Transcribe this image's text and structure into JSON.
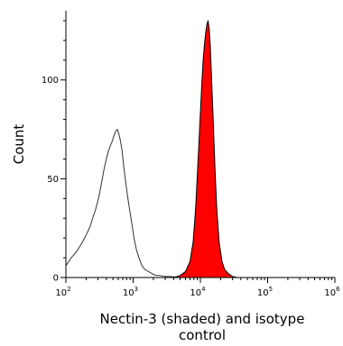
{
  "chart_data": {
    "type": "area",
    "xlabel_lines": [
      "Nectin-3 (shaded) and isotype",
      "control"
    ],
    "ylabel": "Count",
    "x_scale": "log",
    "xlim": [
      100,
      1000000
    ],
    "ylim": [
      0,
      135
    ],
    "x_ticks": [
      {
        "value": 100,
        "base": "10",
        "exp": "2"
      },
      {
        "value": 1000,
        "base": "10",
        "exp": "3"
      },
      {
        "value": 10000,
        "base": "10",
        "exp": "4"
      },
      {
        "value": 100000,
        "base": "10",
        "exp": "5"
      },
      {
        "value": 1000000,
        "base": "10",
        "exp": "6"
      }
    ],
    "y_ticks": [
      {
        "value": 0,
        "label": "0"
      },
      {
        "value": 50,
        "label": "50"
      },
      {
        "value": 100,
        "label": "100"
      }
    ],
    "series": [
      {
        "role": "isotype-control",
        "fill": "none",
        "stroke": "#333333",
        "x": [
          100,
          110,
          120,
          135,
          150,
          170,
          190,
          210,
          230,
          250,
          280,
          310,
          340,
          370,
          400,
          430,
          460,
          490,
          520,
          550,
          580,
          610,
          640,
          680,
          720,
          770,
          820,
          880,
          950,
          1030,
          1120,
          1220,
          1350,
          1500,
          1700,
          1900,
          2200,
          2500,
          3000,
          3600,
          4200,
          5000
        ],
        "y": [
          6,
          8,
          10,
          12,
          14,
          17,
          20,
          23,
          26,
          30,
          35,
          41,
          48,
          55,
          60,
          64,
          67,
          69,
          72,
          74,
          75,
          73,
          70,
          65,
          57,
          49,
          42,
          35,
          28,
          20,
          14,
          10,
          6,
          4,
          3,
          2,
          1,
          1,
          0.5,
          0.5,
          0.3,
          0
        ]
      },
      {
        "role": "nectin-3",
        "fill": "#ff0000",
        "stroke": "#000000",
        "x": [
          4000,
          5000,
          6000,
          7000,
          7800,
          8500,
          9200,
          9900,
          10500,
          11000,
          11500,
          12000,
          12500,
          13000,
          13500,
          14000,
          14700,
          15500,
          16500,
          17500,
          19000,
          21000,
          23000,
          26000,
          30000,
          35000
        ],
        "y": [
          0,
          1,
          3,
          8,
          18,
          35,
          58,
          80,
          98,
          110,
          118,
          124,
          128,
          130,
          126,
          118,
          100,
          80,
          55,
          35,
          18,
          8,
          4,
          2,
          0.5,
          0
        ]
      }
    ]
  }
}
